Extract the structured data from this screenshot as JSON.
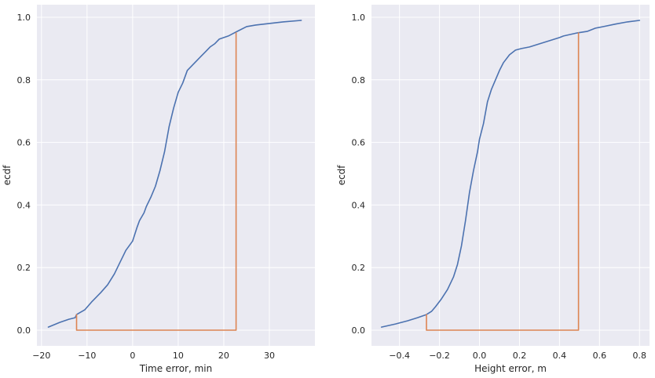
{
  "chart_data": [
    {
      "type": "line",
      "xlabel": "Time error, min",
      "ylabel": "ecdf",
      "xlim": [
        -21,
        40
      ],
      "ylim": [
        -0.05,
        1.04
      ],
      "xticks": [
        -20,
        -10,
        0,
        10,
        20,
        30
      ],
      "xtick_labels": [
        "−20",
        "−10",
        "0",
        "10",
        "20",
        "30"
      ],
      "yticks": [
        0.0,
        0.2,
        0.4,
        0.6,
        0.8,
        1.0
      ],
      "ytick_labels": [
        "0.0",
        "0.2",
        "0.4",
        "0.6",
        "0.8",
        "1.0"
      ],
      "grid": true,
      "series": [
        {
          "color": "#4c72b0",
          "x": [
            -18.5,
            -16,
            -14,
            -12.6,
            -12.3,
            -10.5,
            -9,
            -7,
            -5.5,
            -4,
            -3,
            -2,
            -1.5,
            -1,
            0,
            1,
            1.5,
            2.5,
            3,
            4,
            5,
            6,
            7,
            8,
            9,
            10,
            11,
            12,
            13,
            14,
            15,
            16,
            17,
            18,
            19,
            20,
            21,
            22.3,
            23,
            25,
            27,
            30,
            33,
            37
          ],
          "y": [
            0.01,
            0.025,
            0.035,
            0.04,
            0.05,
            0.065,
            0.09,
            0.12,
            0.145,
            0.18,
            0.21,
            0.24,
            0.255,
            0.265,
            0.285,
            0.33,
            0.35,
            0.375,
            0.395,
            0.425,
            0.46,
            0.51,
            0.57,
            0.65,
            0.71,
            0.76,
            0.79,
            0.83,
            0.845,
            0.86,
            0.875,
            0.89,
            0.905,
            0.915,
            0.93,
            0.935,
            0.94,
            0.95,
            0.955,
            0.97,
            0.975,
            0.98,
            0.985,
            0.99
          ]
        },
        {
          "color": "#dd8452",
          "x": [
            -12.3,
            -12.3,
            22.7,
            22.7
          ],
          "y": [
            0.05,
            0.0,
            0.0,
            0.95
          ]
        }
      ]
    },
    {
      "type": "line",
      "xlabel": "Height error, m",
      "ylabel": "ecdf",
      "xlim": [
        -0.54,
        0.85
      ],
      "ylim": [
        -0.05,
        1.04
      ],
      "xticks": [
        -0.4,
        -0.2,
        0.0,
        0.2,
        0.4,
        0.6,
        0.8
      ],
      "xtick_labels": [
        "−0.4",
        "−0.2",
        "0.0",
        "0.2",
        "0.4",
        "0.6",
        "0.8"
      ],
      "yticks": [
        0.0,
        0.2,
        0.4,
        0.6,
        0.8,
        1.0
      ],
      "ytick_labels": [
        "0.0",
        "0.2",
        "0.4",
        "0.6",
        "0.8",
        "1.0"
      ],
      "grid": true,
      "series": [
        {
          "color": "#4c72b0",
          "x": [
            -0.49,
            -0.42,
            -0.36,
            -0.31,
            -0.265,
            -0.24,
            -0.22,
            -0.19,
            -0.16,
            -0.13,
            -0.11,
            -0.09,
            -0.07,
            -0.05,
            -0.03,
            -0.01,
            0.0,
            0.02,
            0.04,
            0.06,
            0.08,
            0.1,
            0.12,
            0.15,
            0.18,
            0.21,
            0.25,
            0.3,
            0.35,
            0.4,
            0.42,
            0.49,
            0.54,
            0.58,
            0.62,
            0.68,
            0.74,
            0.8
          ],
          "y": [
            0.01,
            0.02,
            0.03,
            0.04,
            0.05,
            0.06,
            0.075,
            0.1,
            0.13,
            0.17,
            0.21,
            0.27,
            0.35,
            0.44,
            0.51,
            0.57,
            0.61,
            0.66,
            0.73,
            0.77,
            0.8,
            0.83,
            0.855,
            0.88,
            0.895,
            0.9,
            0.905,
            0.915,
            0.925,
            0.935,
            0.94,
            0.95,
            0.955,
            0.965,
            0.97,
            0.978,
            0.985,
            0.99
          ]
        },
        {
          "color": "#dd8452",
          "x": [
            -0.265,
            -0.265,
            0.495,
            0.495
          ],
          "y": [
            0.05,
            0.0,
            0.0,
            0.95
          ]
        }
      ]
    }
  ]
}
